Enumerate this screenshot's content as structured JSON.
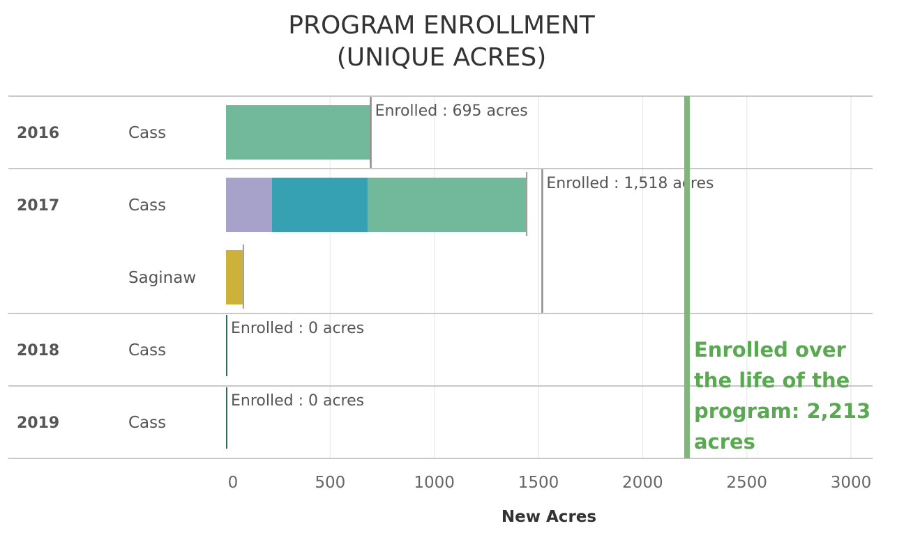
{
  "chart_data": {
    "type": "bar",
    "orientation": "horizontal",
    "stacked": true,
    "title": [
      "PROGRAM ENROLLMENT",
      "(UNIQUE ACRES)"
    ],
    "xlabel": "New Acres",
    "xlim": [
      0,
      3000
    ],
    "xticks": [
      "0",
      "500",
      "1000",
      "1500",
      "2000",
      "2500",
      "3000"
    ],
    "xtick_values": [
      0,
      500,
      1000,
      1500,
      2000,
      2500,
      3000
    ],
    "grid": "vertical",
    "series_colors": [
      "#a6a2c9",
      "#36a1b2",
      "#72b99b",
      "#cdb23a"
    ],
    "groups": [
      {
        "year": "2016",
        "enrolled_label": "Enrolled : 695 acres",
        "enrolled_value": 695,
        "rows": [
          {
            "county": "Cass",
            "segments": [
              {
                "value": 690,
                "color": "#72b99b"
              }
            ],
            "row_total": 690
          }
        ]
      },
      {
        "year": "2017",
        "enrolled_label": "Enrolled : 1,518 acres",
        "enrolled_value": 1518,
        "rows": [
          {
            "county": "Cass",
            "segments": [
              {
                "value": 220,
                "color": "#a6a2c9"
              },
              {
                "value": 460,
                "color": "#36a1b2"
              },
              {
                "value": 760,
                "color": "#72b99b"
              }
            ],
            "row_total": 1440
          },
          {
            "county": "Saginaw",
            "segments": [
              {
                "value": 80,
                "color": "#cdb23a"
              }
            ],
            "row_total": 80
          }
        ]
      },
      {
        "year": "2018",
        "enrolled_label": "Enrolled : 0 acres",
        "enrolled_value": 0,
        "rows": [
          {
            "county": "Cass",
            "segments": [],
            "row_total": 0
          }
        ]
      },
      {
        "year": "2019",
        "enrolled_label": "Enrolled : 0 acres",
        "enrolled_value": 0,
        "rows": [
          {
            "county": "Cass",
            "segments": [],
            "row_total": 0
          }
        ]
      }
    ],
    "reference_line": {
      "value": 2213,
      "color": "#7db87a",
      "label_color": "#5aa852",
      "label_lines": [
        "Enrolled over",
        "the life of the",
        "program: 2,213",
        "acres"
      ]
    }
  }
}
